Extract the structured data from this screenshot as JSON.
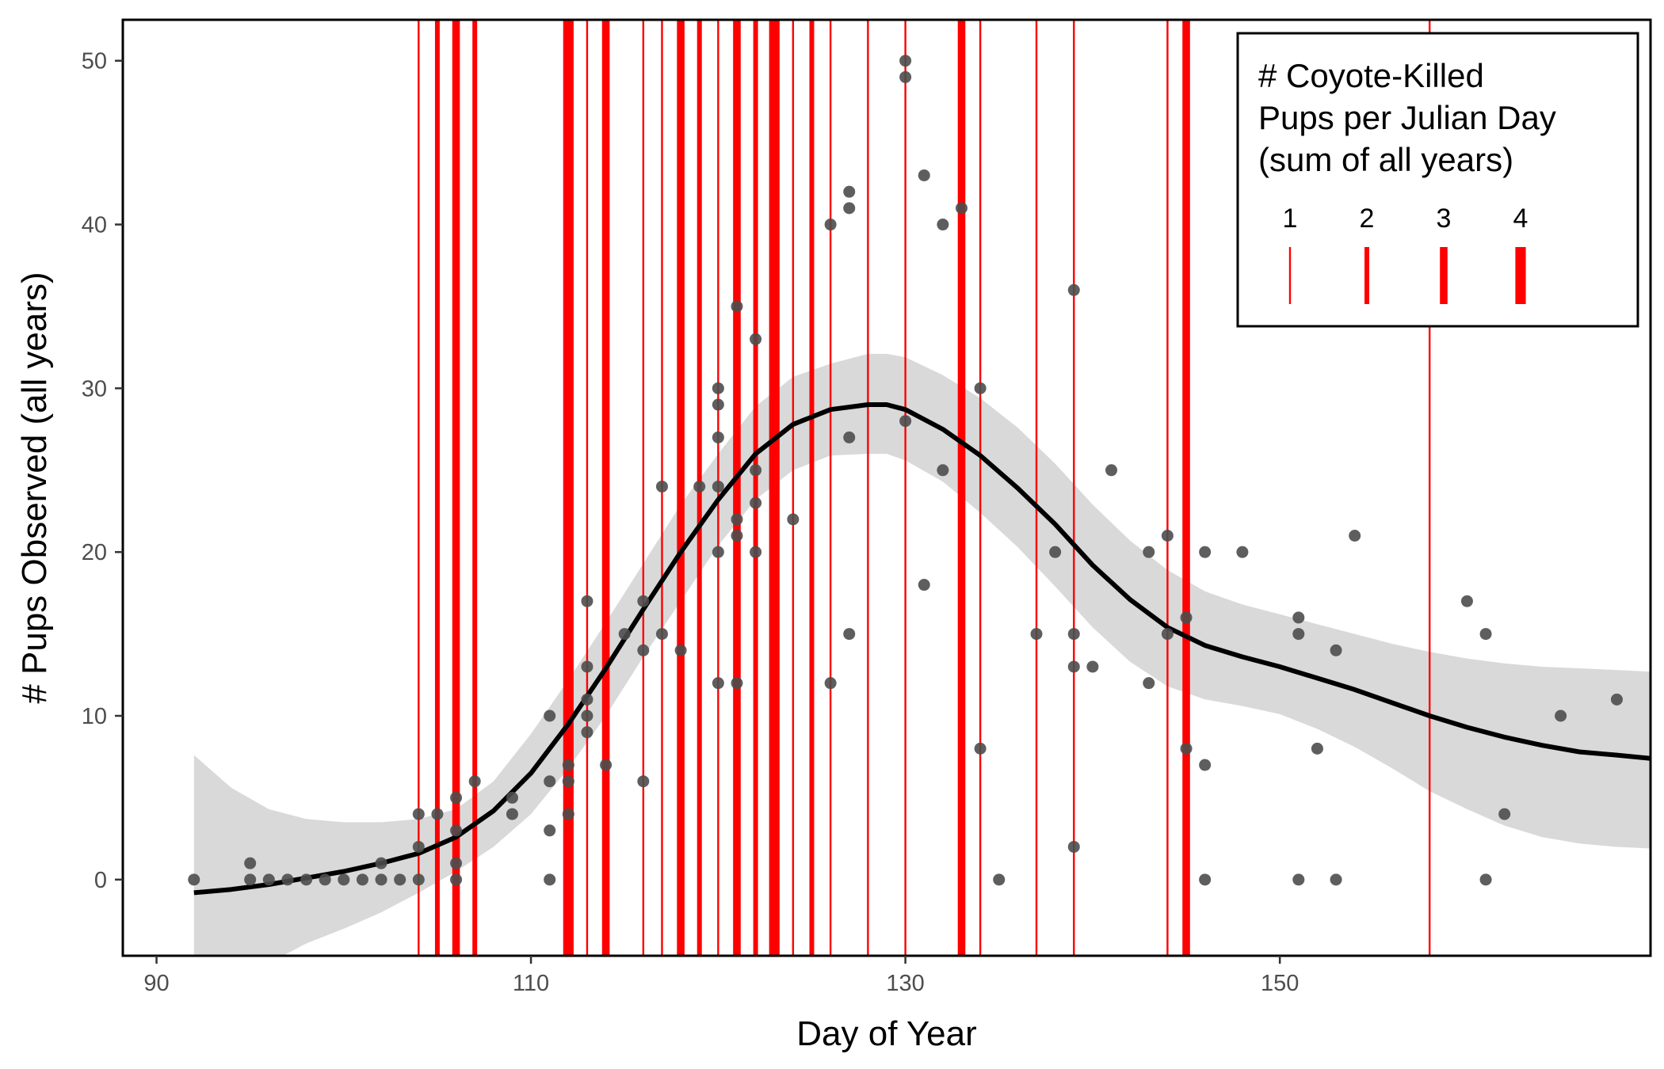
{
  "chart_data": {
    "type": "scatter",
    "xlabel": "Day of Year",
    "ylabel": "# Pups Observed (all years)",
    "xlim": [
      88.2,
      169.8
    ],
    "ylim": [
      -4.65,
      52.5
    ],
    "xticks": [
      90,
      110,
      130,
      150
    ],
    "yticks": [
      0,
      10,
      20,
      30,
      40,
      50
    ],
    "grid": false,
    "colors": {
      "points": "#4d4d4d",
      "smooth_line": "#000000",
      "confidence_band": "#d9d9d9",
      "kill_lines": "#ff0000"
    },
    "points": [
      [
        92,
        0
      ],
      [
        95,
        1
      ],
      [
        95,
        0
      ],
      [
        96,
        0
      ],
      [
        97,
        0
      ],
      [
        98,
        0
      ],
      [
        99,
        0
      ],
      [
        100,
        0
      ],
      [
        101,
        0
      ],
      [
        102,
        1
      ],
      [
        102,
        0
      ],
      [
        103,
        0
      ],
      [
        104,
        4
      ],
      [
        104,
        2
      ],
      [
        104,
        0
      ],
      [
        105,
        4
      ],
      [
        106,
        5
      ],
      [
        106,
        3
      ],
      [
        106,
        1
      ],
      [
        106,
        0
      ],
      [
        107,
        6
      ],
      [
        109,
        5
      ],
      [
        109,
        4
      ],
      [
        111,
        10
      ],
      [
        111,
        6
      ],
      [
        111,
        3
      ],
      [
        111,
        0
      ],
      [
        112,
        7
      ],
      [
        112,
        6
      ],
      [
        112,
        4
      ],
      [
        113,
        17
      ],
      [
        113,
        13
      ],
      [
        113,
        11
      ],
      [
        113,
        10
      ],
      [
        113,
        9
      ],
      [
        114,
        7
      ],
      [
        115,
        15
      ],
      [
        116,
        17
      ],
      [
        116,
        14
      ],
      [
        116,
        6
      ],
      [
        117,
        24
      ],
      [
        117,
        15
      ],
      [
        118,
        14
      ],
      [
        119,
        24
      ],
      [
        120,
        30
      ],
      [
        120,
        29
      ],
      [
        120,
        27
      ],
      [
        120,
        24
      ],
      [
        120,
        20
      ],
      [
        120,
        12
      ],
      [
        121,
        35
      ],
      [
        121,
        22
      ],
      [
        121,
        21
      ],
      [
        121,
        12
      ],
      [
        122,
        33
      ],
      [
        122,
        25
      ],
      [
        122,
        23
      ],
      [
        122,
        20
      ],
      [
        124,
        22
      ],
      [
        126,
        40
      ],
      [
        126,
        12
      ],
      [
        127,
        42
      ],
      [
        127,
        41
      ],
      [
        127,
        27
      ],
      [
        127,
        15
      ],
      [
        130,
        50
      ],
      [
        130,
        49
      ],
      [
        130,
        28
      ],
      [
        131,
        43
      ],
      [
        131,
        18
      ],
      [
        132,
        40
      ],
      [
        132,
        25
      ],
      [
        133,
        41
      ],
      [
        134,
        30
      ],
      [
        134,
        8
      ],
      [
        135,
        0
      ],
      [
        137,
        15
      ],
      [
        138,
        20
      ],
      [
        139,
        36
      ],
      [
        139,
        15
      ],
      [
        139,
        13
      ],
      [
        139,
        2
      ],
      [
        140,
        13
      ],
      [
        141,
        25
      ],
      [
        143,
        20
      ],
      [
        143,
        12
      ],
      [
        144,
        21
      ],
      [
        144,
        15
      ],
      [
        145,
        16
      ],
      [
        145,
        8
      ],
      [
        146,
        20
      ],
      [
        146,
        7
      ],
      [
        146,
        0
      ],
      [
        148,
        20
      ],
      [
        151,
        16
      ],
      [
        151,
        15
      ],
      [
        151,
        0
      ],
      [
        152,
        8
      ],
      [
        153,
        14
      ],
      [
        153,
        0
      ],
      [
        154,
        21
      ],
      [
        160,
        17
      ],
      [
        161,
        15
      ],
      [
        161,
        0
      ],
      [
        162,
        4
      ],
      [
        165,
        10
      ],
      [
        168,
        11
      ]
    ],
    "smooth_fit": {
      "x": [
        92,
        94,
        96,
        98,
        100,
        102,
        104,
        106,
        108,
        110,
        112,
        114,
        116,
        118,
        120,
        122,
        124,
        126,
        128,
        129,
        130,
        132,
        134,
        136,
        138,
        140,
        142,
        144,
        146,
        148,
        150,
        152,
        154,
        156,
        158,
        160,
        162,
        164,
        166,
        168,
        169.8
      ],
      "y": [
        -0.8,
        -0.6,
        -0.3,
        0.1,
        0.5,
        1.0,
        1.6,
        2.6,
        4.2,
        6.5,
        9.5,
        12.9,
        16.5,
        20.0,
        23.2,
        26.0,
        27.8,
        28.7,
        29.0,
        29.0,
        28.7,
        27.5,
        25.9,
        23.9,
        21.7,
        19.2,
        17.1,
        15.4,
        14.3,
        13.6,
        13.0,
        12.3,
        11.6,
        10.8,
        10.0,
        9.3,
        8.7,
        8.2,
        7.8,
        7.6,
        7.4
      ]
    },
    "confidence_band": {
      "x": [
        92,
        94,
        96,
        98,
        100,
        102,
        104,
        106,
        108,
        110,
        112,
        114,
        116,
        118,
        120,
        122,
        124,
        126,
        128,
        129,
        130,
        132,
        134,
        136,
        138,
        140,
        142,
        144,
        146,
        148,
        150,
        152,
        154,
        156,
        158,
        160,
        162,
        164,
        166,
        168,
        169.8
      ],
      "lower": [
        -9.3,
        -7.2,
        -5.1,
        -3.9,
        -3.0,
        -2.0,
        -0.8,
        0.5,
        2.0,
        4.0,
        6.8,
        10.0,
        13.6,
        17.0,
        20.4,
        23.2,
        25.0,
        25.9,
        26.0,
        26.0,
        25.6,
        24.3,
        22.4,
        20.3,
        17.9,
        15.4,
        13.3,
        11.8,
        11.0,
        10.6,
        10.1,
        9.2,
        8.1,
        6.8,
        5.4,
        4.3,
        3.3,
        2.6,
        2.2,
        2.0,
        1.9
      ],
      "upper": [
        7.6,
        5.6,
        4.3,
        3.7,
        3.5,
        3.5,
        3.7,
        4.3,
        6.0,
        8.9,
        12.2,
        15.7,
        19.3,
        22.9,
        26.0,
        28.9,
        30.7,
        31.5,
        32.1,
        32.1,
        31.9,
        30.8,
        29.4,
        27.6,
        25.4,
        22.9,
        20.7,
        18.9,
        17.6,
        16.8,
        16.2,
        15.6,
        15.0,
        14.4,
        13.9,
        13.5,
        13.2,
        13.0,
        12.9,
        12.8,
        12.7
      ]
    },
    "coyote_kills": {
      "days": [
        104,
        105,
        106,
        107,
        112,
        113,
        114,
        116,
        117,
        118,
        119,
        120,
        121,
        122,
        123,
        124,
        125,
        126,
        128,
        130,
        133,
        134,
        137,
        139,
        144,
        145,
        158
      ],
      "counts": [
        1,
        2,
        3,
        2,
        4,
        1,
        3,
        1,
        1,
        3,
        2,
        1,
        3,
        2,
        4,
        1,
        2,
        1,
        1,
        1,
        3,
        1,
        1,
        1,
        1,
        3,
        1
      ]
    },
    "legend": {
      "title_lines": [
        "# Coyote-Killed",
        "Pups per Julian Day",
        "(sum of all years)"
      ],
      "keys": [
        "1",
        "2",
        "3",
        "4"
      ],
      "placement": "top-right"
    }
  }
}
